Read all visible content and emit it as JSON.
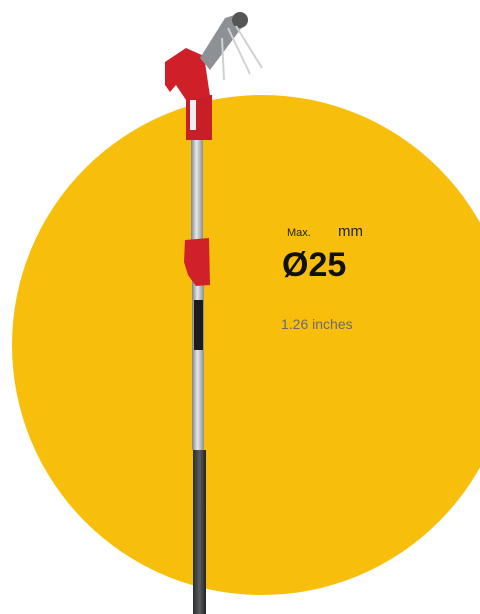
{
  "spec": {
    "max_label": "Max.",
    "unit": "mm",
    "diameter": "Ø25",
    "inches": "1.26 inches"
  }
}
